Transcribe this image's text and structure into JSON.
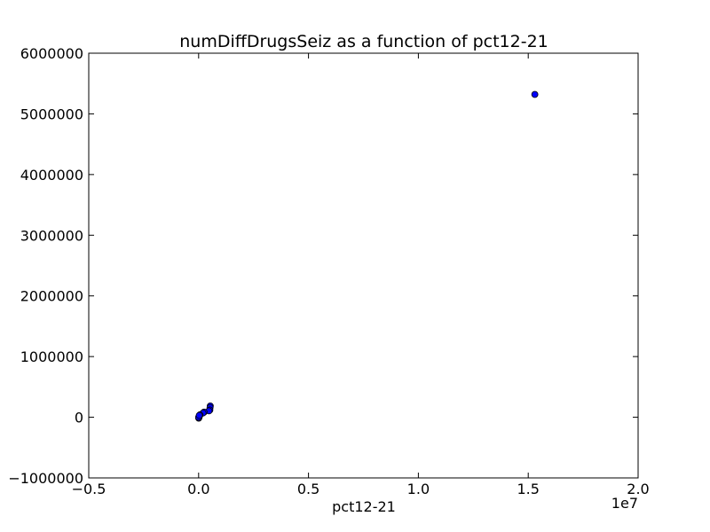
{
  "chart_data": {
    "type": "scatter",
    "title": "numDiffDrugsSeiz as a function of pct12-21",
    "xlabel": "pct12-21",
    "ylabel": "",
    "x_offset_label": "1e7",
    "xlim": [
      -5000000,
      20000000
    ],
    "ylim": [
      -1000000,
      6000000
    ],
    "x_ticks": [
      -5000000,
      0,
      5000000,
      10000000,
      15000000,
      20000000
    ],
    "x_tick_labels": [
      "−0.5",
      "0.0",
      "0.5",
      "1.0",
      "1.5",
      "2.0"
    ],
    "y_ticks": [
      -1000000,
      0,
      1000000,
      2000000,
      3000000,
      4000000,
      5000000,
      6000000
    ],
    "y_tick_labels": [
      "−1000000",
      "0",
      "1000000",
      "2000000",
      "3000000",
      "4000000",
      "5000000",
      "6000000"
    ],
    "grid": false,
    "marker_color": "#0000ff",
    "marker_edge_color": "#000000",
    "points": [
      {
        "x": 15300000,
        "y": 5320000
      },
      {
        "x": 530000,
        "y": 185000
      },
      {
        "x": 520000,
        "y": 160000
      },
      {
        "x": 510000,
        "y": 120000
      },
      {
        "x": 470000,
        "y": 105000
      },
      {
        "x": 250000,
        "y": 85000
      },
      {
        "x": 200000,
        "y": 70000
      },
      {
        "x": 60000,
        "y": 40000
      },
      {
        "x": 40000,
        "y": 20000
      },
      {
        "x": 20000,
        "y": 5000
      },
      {
        "x": 10000,
        "y": -5000
      },
      {
        "x": 5000,
        "y": -15000
      },
      {
        "x": 0,
        "y": 0
      },
      {
        "x": 30000,
        "y": 30000
      }
    ]
  }
}
